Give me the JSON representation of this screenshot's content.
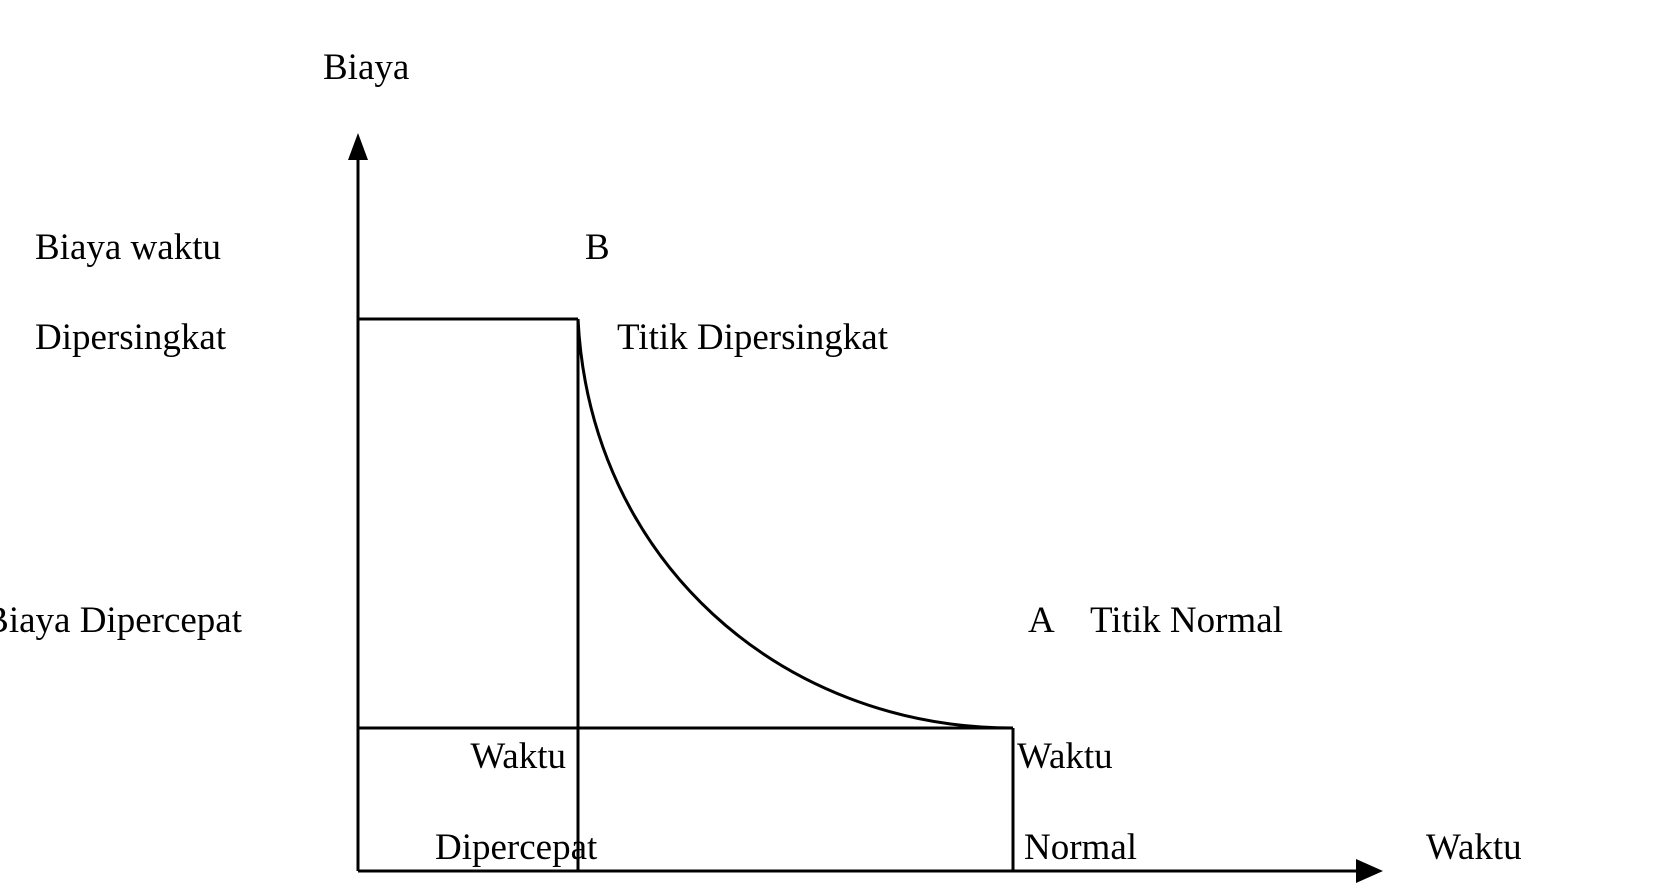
{
  "diagram": {
    "y_axis_label": "Biaya",
    "x_axis_label": "Waktu",
    "crash_cost_label_line1": "Biaya waktu",
    "crash_cost_label_line2": "Dipersingkat",
    "normal_cost_label": "Biaya Dipercepat",
    "point_b": "B",
    "point_b_label": "Titik Dipersingkat",
    "point_a": "A",
    "point_a_label": "Titik Normal",
    "crash_time_label_line1": "Waktu",
    "crash_time_label_line2": "Dipercepat",
    "normal_time_label_line1": "Waktu",
    "normal_time_label_line2": "Normal",
    "line_color": "#000000"
  }
}
